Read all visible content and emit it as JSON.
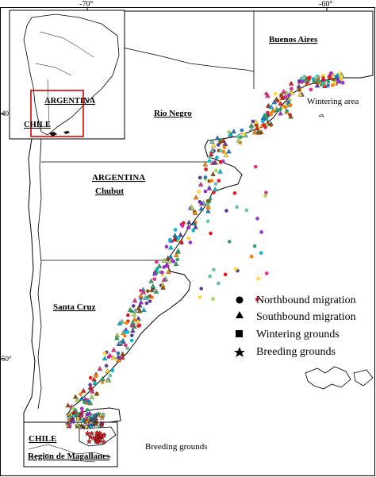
{
  "axes": {
    "top_ticks": [
      "-70°",
      "-60°"
    ],
    "left_ticks": [
      "-40°",
      "-50°"
    ]
  },
  "regions": {
    "buenos_aires": "Buenos Aires",
    "rio_negro": "Rio Negro",
    "argentina": "ARGENTINA",
    "chubut": "Chubut",
    "santa_cruz": "Santa Cruz",
    "chile": "CHILE",
    "magallanes": "Region de Magallanes"
  },
  "areas": {
    "wintering": "Wintering area",
    "breeding": "Breeding grounds"
  },
  "inset": {
    "argentina": "ARGENTINA",
    "chile": "CHILE"
  },
  "legend": {
    "items": [
      {
        "symbol": "circle-icon",
        "label": "Northbound migration"
      },
      {
        "symbol": "triangle-icon",
        "label": "Southbound migration"
      },
      {
        "symbol": "square-icon",
        "label": "Wintering grounds"
      },
      {
        "symbol": "star-icon",
        "label": "Breeding grounds"
      }
    ]
  },
  "colors": {
    "point_palette": [
      "#e41a1c",
      "#2ca25f",
      "#9b30d9",
      "#1f78b4",
      "#ff7f00",
      "#ffd92f",
      "#66c2a5",
      "#e7298a",
      "#8c510a",
      "#00bcd4",
      "#a6d854",
      "#5e3c99"
    ],
    "inset_box": "#e00000"
  }
}
